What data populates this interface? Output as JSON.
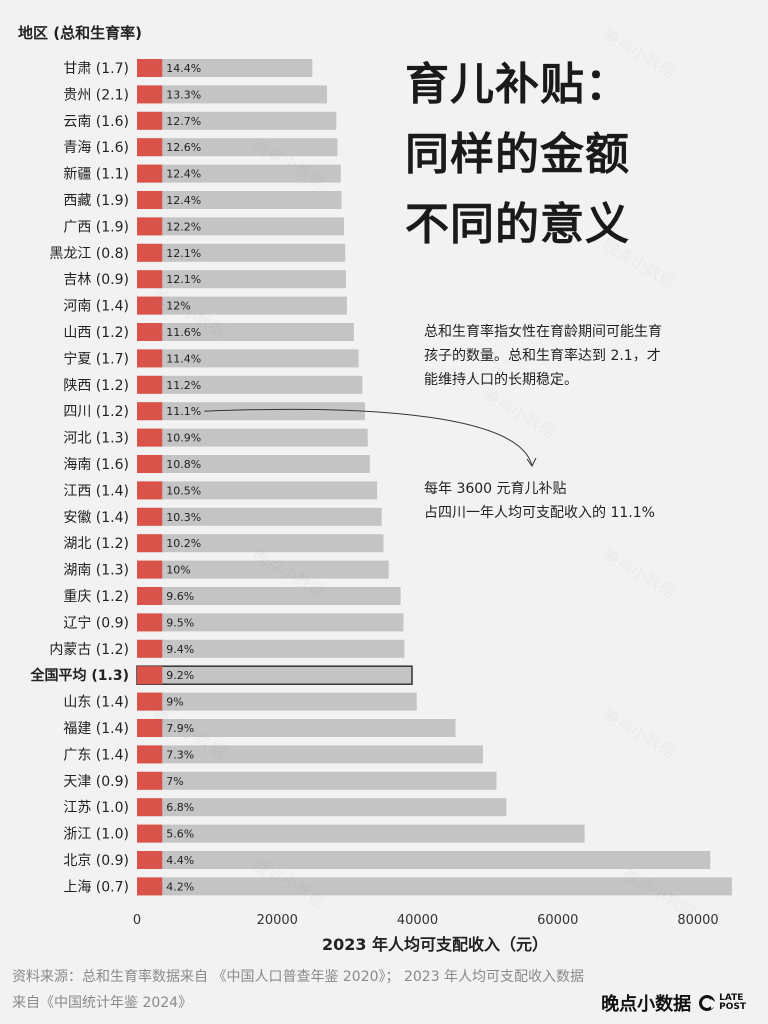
{
  "header": {
    "y_axis_title": "地区 (总和生育率)",
    "headline_lines": [
      "育儿补贴：",
      "同样的金额",
      "不同的意义"
    ]
  },
  "notes": {
    "definition_lines": [
      "总和生育率指女性在育龄期间可能生育",
      "孩子的数量。总和生育率达到 2.1，才",
      "能维持人口的长期稳定。"
    ],
    "annotation_lines": [
      "每年 3600 元育儿补贴",
      "占四川一年人均可支配收入的 11.1%"
    ]
  },
  "footer": {
    "source_lines": [
      "资料来源：总和生育率数据来自 《中国人口普查年鉴 2020》； 2023 年人均可支配收入数据",
      "来自《中国统计年鉴 2024》"
    ],
    "brand_name": "晚点小数据",
    "brand_logo_text": [
      "LATE",
      "POST"
    ]
  },
  "watermark_text": "晚点小数据",
  "colors": {
    "subsidy_bar": "#d9534a",
    "income_bar": "#c4c4c4",
    "background": "#f2f2f2",
    "highlight_border": "#333333"
  },
  "chart_data": {
    "type": "bar",
    "orientation": "horizontal",
    "xlabel": "2023 年人均可支配收入（元）",
    "ylabel": "地区 (总和生育率)",
    "xlim": [
      0,
      85000
    ],
    "xticks": [
      0,
      20000,
      40000,
      60000,
      80000
    ],
    "subsidy_amount": 3600,
    "highlight_category": "全国平均 (1.3)",
    "annotated_category": "四川 (1.2)",
    "grid": false,
    "categories": [
      "甘肃 (1.7)",
      "贵州 (2.1)",
      "云南 (1.6)",
      "青海 (1.6)",
      "新疆 (1.1)",
      "西藏 (1.9)",
      "广西 (1.9)",
      "黑龙江 (0.8)",
      "吉林 (0.9)",
      "河南 (1.4)",
      "山西 (1.2)",
      "宁夏 (1.7)",
      "陕西 (1.2)",
      "四川 (1.2)",
      "河北 (1.3)",
      "海南 (1.6)",
      "江西 (1.4)",
      "安徽 (1.4)",
      "湖北 (1.2)",
      "湖南 (1.3)",
      "重庆 (1.2)",
      "辽宁 (0.9)",
      "内蒙古 (1.2)",
      "全国平均 (1.3)",
      "山东 (1.4)",
      "福建 (1.4)",
      "广东 (1.4)",
      "天津 (0.9)",
      "江苏 (1.0)",
      "浙江 (1.0)",
      "北京 (0.9)",
      "上海 (0.7)"
    ],
    "values": [
      25011,
      27098,
      28421,
      28587,
      29065,
      29169,
      29514,
      29694,
      29797,
      29933,
      30924,
      31604,
      32128,
      32514,
      32903,
      33192,
      34242,
      34893,
      35146,
      35895,
      37595,
      37992,
      38130,
      39218,
      39890,
      45426,
      49327,
      51271,
      52674,
      63830,
      81752,
      84834
    ],
    "percent_labels": [
      "14.4%",
      "13.3%",
      "12.7%",
      "12.6%",
      "12.4%",
      "12.4%",
      "12.2%",
      "12.1%",
      "12.1%",
      "12%",
      "11.6%",
      "11.4%",
      "11.2%",
      "11.1%",
      "10.9%",
      "10.8%",
      "10.5%",
      "10.3%",
      "10.2%",
      "10%",
      "9.6%",
      "9.5%",
      "9.4%",
      "9.2%",
      "9%",
      "7.9%",
      "7.3%",
      "7%",
      "6.8%",
      "5.6%",
      "4.4%",
      "4.2%"
    ]
  }
}
